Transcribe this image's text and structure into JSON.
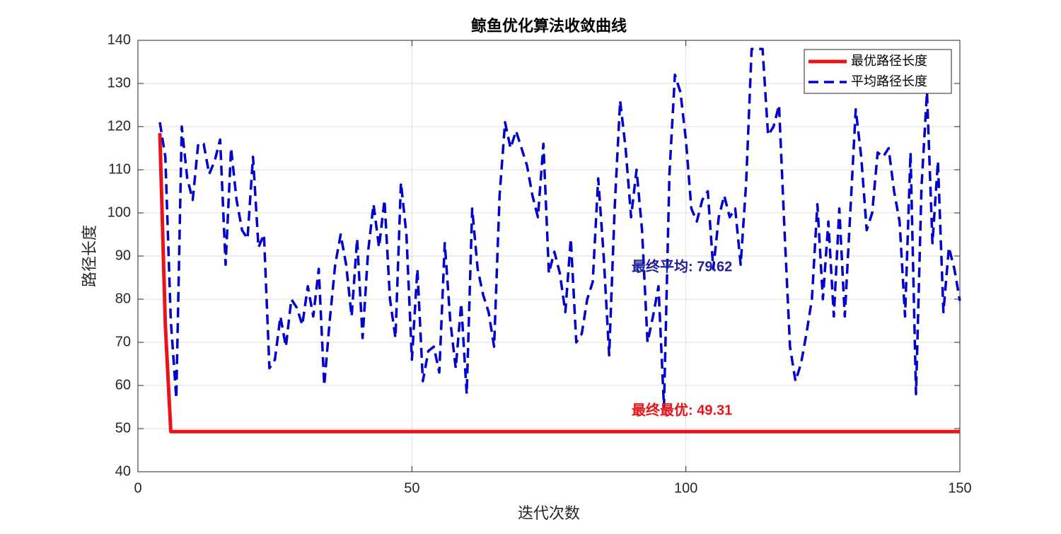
{
  "chart_data": {
    "type": "line",
    "title": "鲸鱼优化算法收敛曲线",
    "x_label": "迭代次数",
    "y_label": "路径长度",
    "x": [
      4,
      5,
      6,
      7,
      8,
      9,
      10,
      11,
      12,
      13,
      14,
      15,
      16,
      17,
      18,
      19,
      20,
      21,
      22,
      23,
      24,
      25,
      26,
      27,
      28,
      29,
      30,
      31,
      32,
      33,
      34,
      35,
      36,
      37,
      38,
      39,
      40,
      41,
      42,
      43,
      44,
      45,
      46,
      47,
      48,
      49,
      50,
      51,
      52,
      53,
      54,
      55,
      56,
      57,
      58,
      59,
      60,
      61,
      62,
      63,
      64,
      65,
      66,
      67,
      68,
      69,
      70,
      71,
      72,
      73,
      74,
      75,
      76,
      77,
      78,
      79,
      80,
      81,
      82,
      83,
      84,
      85,
      86,
      87,
      88,
      89,
      90,
      91,
      92,
      93,
      94,
      95,
      96,
      97,
      98,
      99,
      100,
      101,
      102,
      103,
      104,
      105,
      106,
      107,
      108,
      109,
      110,
      111,
      112,
      113,
      114,
      115,
      116,
      117,
      118,
      119,
      120,
      121,
      122,
      123,
      124,
      125,
      126,
      127,
      128,
      129,
      130,
      131,
      132,
      133,
      134,
      135,
      136,
      137,
      138,
      139,
      140,
      141,
      142,
      143,
      144,
      145,
      146,
      147,
      148,
      149,
      150
    ],
    "series": [
      {
        "name": "最优路径长度",
        "color": "#e8141a",
        "dash": false,
        "width": 5,
        "values": [
          118.5,
          74,
          49.31,
          49.31,
          49.31,
          49.31,
          49.31,
          49.31,
          49.31,
          49.31,
          49.31,
          49.31,
          49.31,
          49.31,
          49.31,
          49.31,
          49.31,
          49.31,
          49.31,
          49.31,
          49.31,
          49.31,
          49.31,
          49.31,
          49.31,
          49.31,
          49.31,
          49.31,
          49.31,
          49.31,
          49.31,
          49.31,
          49.31,
          49.31,
          49.31,
          49.31,
          49.31,
          49.31,
          49.31,
          49.31,
          49.31,
          49.31,
          49.31,
          49.31,
          49.31,
          49.31,
          49.31,
          49.31,
          49.31,
          49.31,
          49.31,
          49.31,
          49.31,
          49.31,
          49.31,
          49.31,
          49.31,
          49.31,
          49.31,
          49.31,
          49.31,
          49.31,
          49.31,
          49.31,
          49.31,
          49.31,
          49.31,
          49.31,
          49.31,
          49.31,
          49.31,
          49.31,
          49.31,
          49.31,
          49.31,
          49.31,
          49.31,
          49.31,
          49.31,
          49.31,
          49.31,
          49.31,
          49.31,
          49.31,
          49.31,
          49.31,
          49.31,
          49.31,
          49.31,
          49.31,
          49.31,
          49.31,
          49.31,
          49.31,
          49.31,
          49.31,
          49.31,
          49.31,
          49.31,
          49.31,
          49.31,
          49.31,
          49.31,
          49.31,
          49.31,
          49.31,
          49.31,
          49.31,
          49.31,
          49.31,
          49.31,
          49.31,
          49.31,
          49.31,
          49.31,
          49.31,
          49.31,
          49.31,
          49.31,
          49.31,
          49.31,
          49.31,
          49.31,
          49.31,
          49.31,
          49.31,
          49.31,
          49.31,
          49.31,
          49.31,
          49.31,
          49.31,
          49.31,
          49.31,
          49.31,
          49.31,
          49.31,
          49.31,
          49.31,
          49.31,
          49.31,
          49.31,
          49.31,
          49.31,
          49.31,
          49.31,
          49.31
        ]
      },
      {
        "name": "平均路径长度",
        "color": "#0000cc",
        "dash": true,
        "width": 3.5,
        "values": [
          121,
          113,
          75,
          57,
          120,
          108,
          103,
          116,
          116,
          109,
          112,
          117,
          88,
          115,
          103,
          96,
          94,
          113,
          92,
          95,
          64,
          66,
          76,
          69,
          80,
          78,
          74,
          83,
          76,
          87,
          60,
          75,
          88,
          95,
          88,
          76,
          94,
          71,
          91,
          102,
          92,
          103,
          80,
          71,
          107,
          95,
          66,
          87,
          61,
          68,
          69,
          63,
          93,
          75,
          64,
          79,
          58,
          101,
          87,
          81,
          77,
          69,
          104,
          121,
          115,
          119,
          115,
          111,
          104,
          99,
          116,
          86,
          91,
          86,
          77,
          94,
          70,
          72,
          80,
          84,
          108,
          90,
          67,
          101,
          126,
          115,
          99,
          110,
          96,
          70,
          76,
          83,
          55,
          109,
          132,
          128,
          117,
          101,
          98,
          103,
          105,
          87,
          99,
          104,
          99,
          101,
          88,
          107,
          138,
          138,
          138,
          118,
          120,
          125,
          96,
          69,
          61,
          65,
          72,
          80,
          102,
          80,
          98,
          76,
          101,
          76,
          100,
          124,
          113,
          96,
          100,
          114,
          113,
          115,
          105,
          98,
          76,
          114,
          58,
          106,
          128,
          93,
          112,
          77,
          92,
          87,
          79.62
        ]
      }
    ],
    "annotations": [
      {
        "text": "最终平均: 79.62",
        "color": "#1f1f99"
      },
      {
        "text": "最终最优: 49.31",
        "color": "#e8141a"
      }
    ],
    "xlim": [
      0,
      150
    ],
    "xticks": [
      0,
      50,
      100,
      150
    ],
    "ylim": [
      40,
      140
    ],
    "yticks": [
      40,
      50,
      60,
      70,
      80,
      90,
      100,
      110,
      120,
      130,
      140
    ],
    "grid": true,
    "legend": "northeast"
  }
}
